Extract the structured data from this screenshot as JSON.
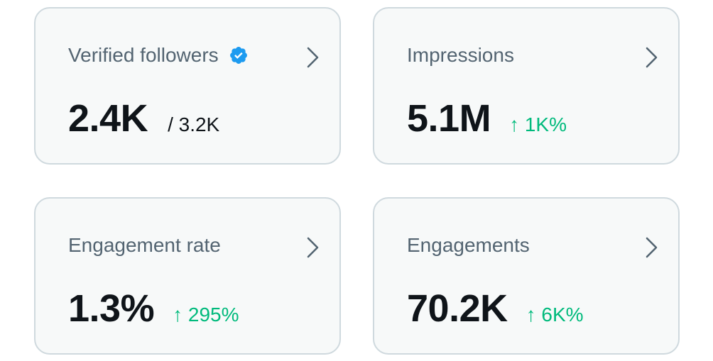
{
  "cards": [
    {
      "label": "Verified followers",
      "value": "2.4K",
      "secondary": "/ 3.2K",
      "icon": "verified-badge-icon"
    },
    {
      "label": "Impressions",
      "value": "5.1M",
      "change": "↑ 1K%"
    },
    {
      "label": "Engagement rate",
      "value": "1.3%",
      "change": "↑ 295%"
    },
    {
      "label": "Engagements",
      "value": "70.2K",
      "change": "↑ 6K%"
    }
  ],
  "colors": {
    "card_bg": "#f7f9f9",
    "card_border": "#cfd9de",
    "label": "#536471",
    "value": "#0f1419",
    "positive": "#00ba7c",
    "verified": "#1d9bf0"
  }
}
